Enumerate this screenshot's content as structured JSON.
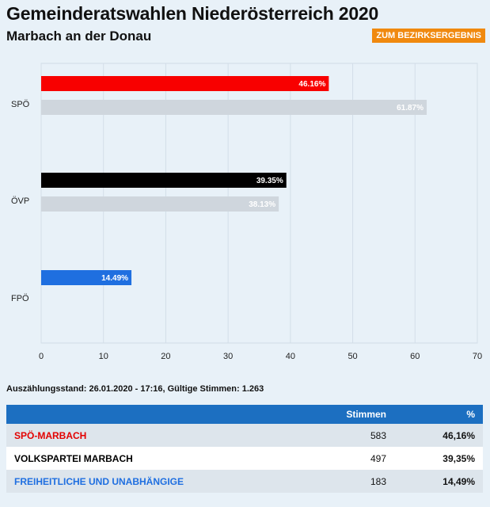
{
  "header": {
    "title": "Gemeinderatswahlen Niederösterreich 2020",
    "subtitle": "Marbach an der Donau",
    "district_button": "ZUM BEZIRKSERGEBNIS"
  },
  "chart_data": {
    "type": "bar",
    "orientation": "horizontal",
    "categories": [
      "SPÖ",
      "ÖVP",
      "FPÖ"
    ],
    "series": [
      {
        "values": [
          46.16,
          39.35,
          14.49
        ],
        "labels": [
          "46.16%",
          "39.35%",
          "14.49%"
        ],
        "colors": [
          "#f80000",
          "#000000",
          "#1f6fe0"
        ]
      },
      {
        "values": [
          61.87,
          38.13,
          null
        ],
        "labels": [
          "61.87%",
          "38.13%",
          ""
        ],
        "color": "#cfd6dd"
      }
    ],
    "xlim": [
      0,
      70
    ],
    "xticks": [
      0,
      10,
      20,
      30,
      40,
      50,
      60,
      70
    ],
    "grid": true
  },
  "info": "Auszählungsstand: 26.01.2020 - 17:16, Gültige Stimmen: 1.263",
  "table": {
    "headers": [
      "",
      "Stimmen",
      "%"
    ],
    "rows": [
      {
        "party": "SPÖ-MARBACH",
        "votes": "583",
        "percent": "46,16%",
        "color": "#e30000"
      },
      {
        "party": "VOLKSPARTEI MARBACH",
        "votes": "497",
        "percent": "39,35%",
        "color": "#000000"
      },
      {
        "party": "FREIHEITLICHE UND UNABHÄNGIGE",
        "votes": "183",
        "percent": "14,49%",
        "color": "#1f6fe0"
      }
    ]
  }
}
